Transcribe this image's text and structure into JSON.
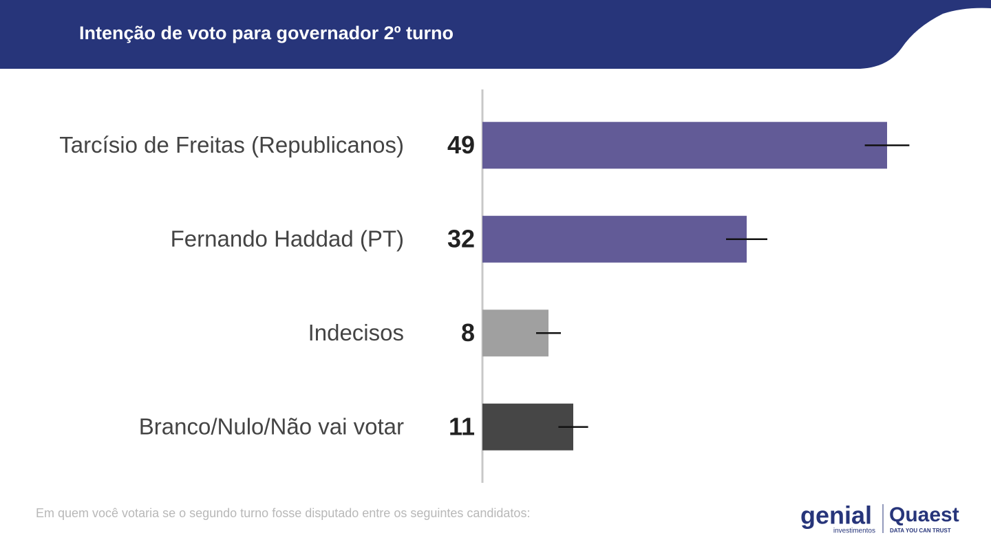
{
  "chart_data": {
    "type": "bar",
    "orientation": "horizontal",
    "title": "Intenção de voto para governador 2º turno",
    "categories": [
      "Tarcísio de Freitas (Republicanos)",
      "Fernando Haddad (PT)",
      "Indecisos",
      "Branco/Nulo/Não vai votar"
    ],
    "values": [
      49,
      32,
      8,
      11
    ],
    "errors": [
      2.7,
      2.5,
      1.5,
      1.8
    ],
    "colors": [
      "#625b97",
      "#625b97",
      "#a0a0a0",
      "#464646"
    ],
    "xlim": [
      0,
      60
    ]
  },
  "footer": {
    "note": "Em quem você votaria se o segundo turno fosse disputado entre os seguintes candidatos:"
  },
  "logos": {
    "genial": "genial",
    "genial_sub": "investimentos",
    "quaest": "Quaest",
    "quaest_sub": "DATA YOU CAN TRUST"
  }
}
